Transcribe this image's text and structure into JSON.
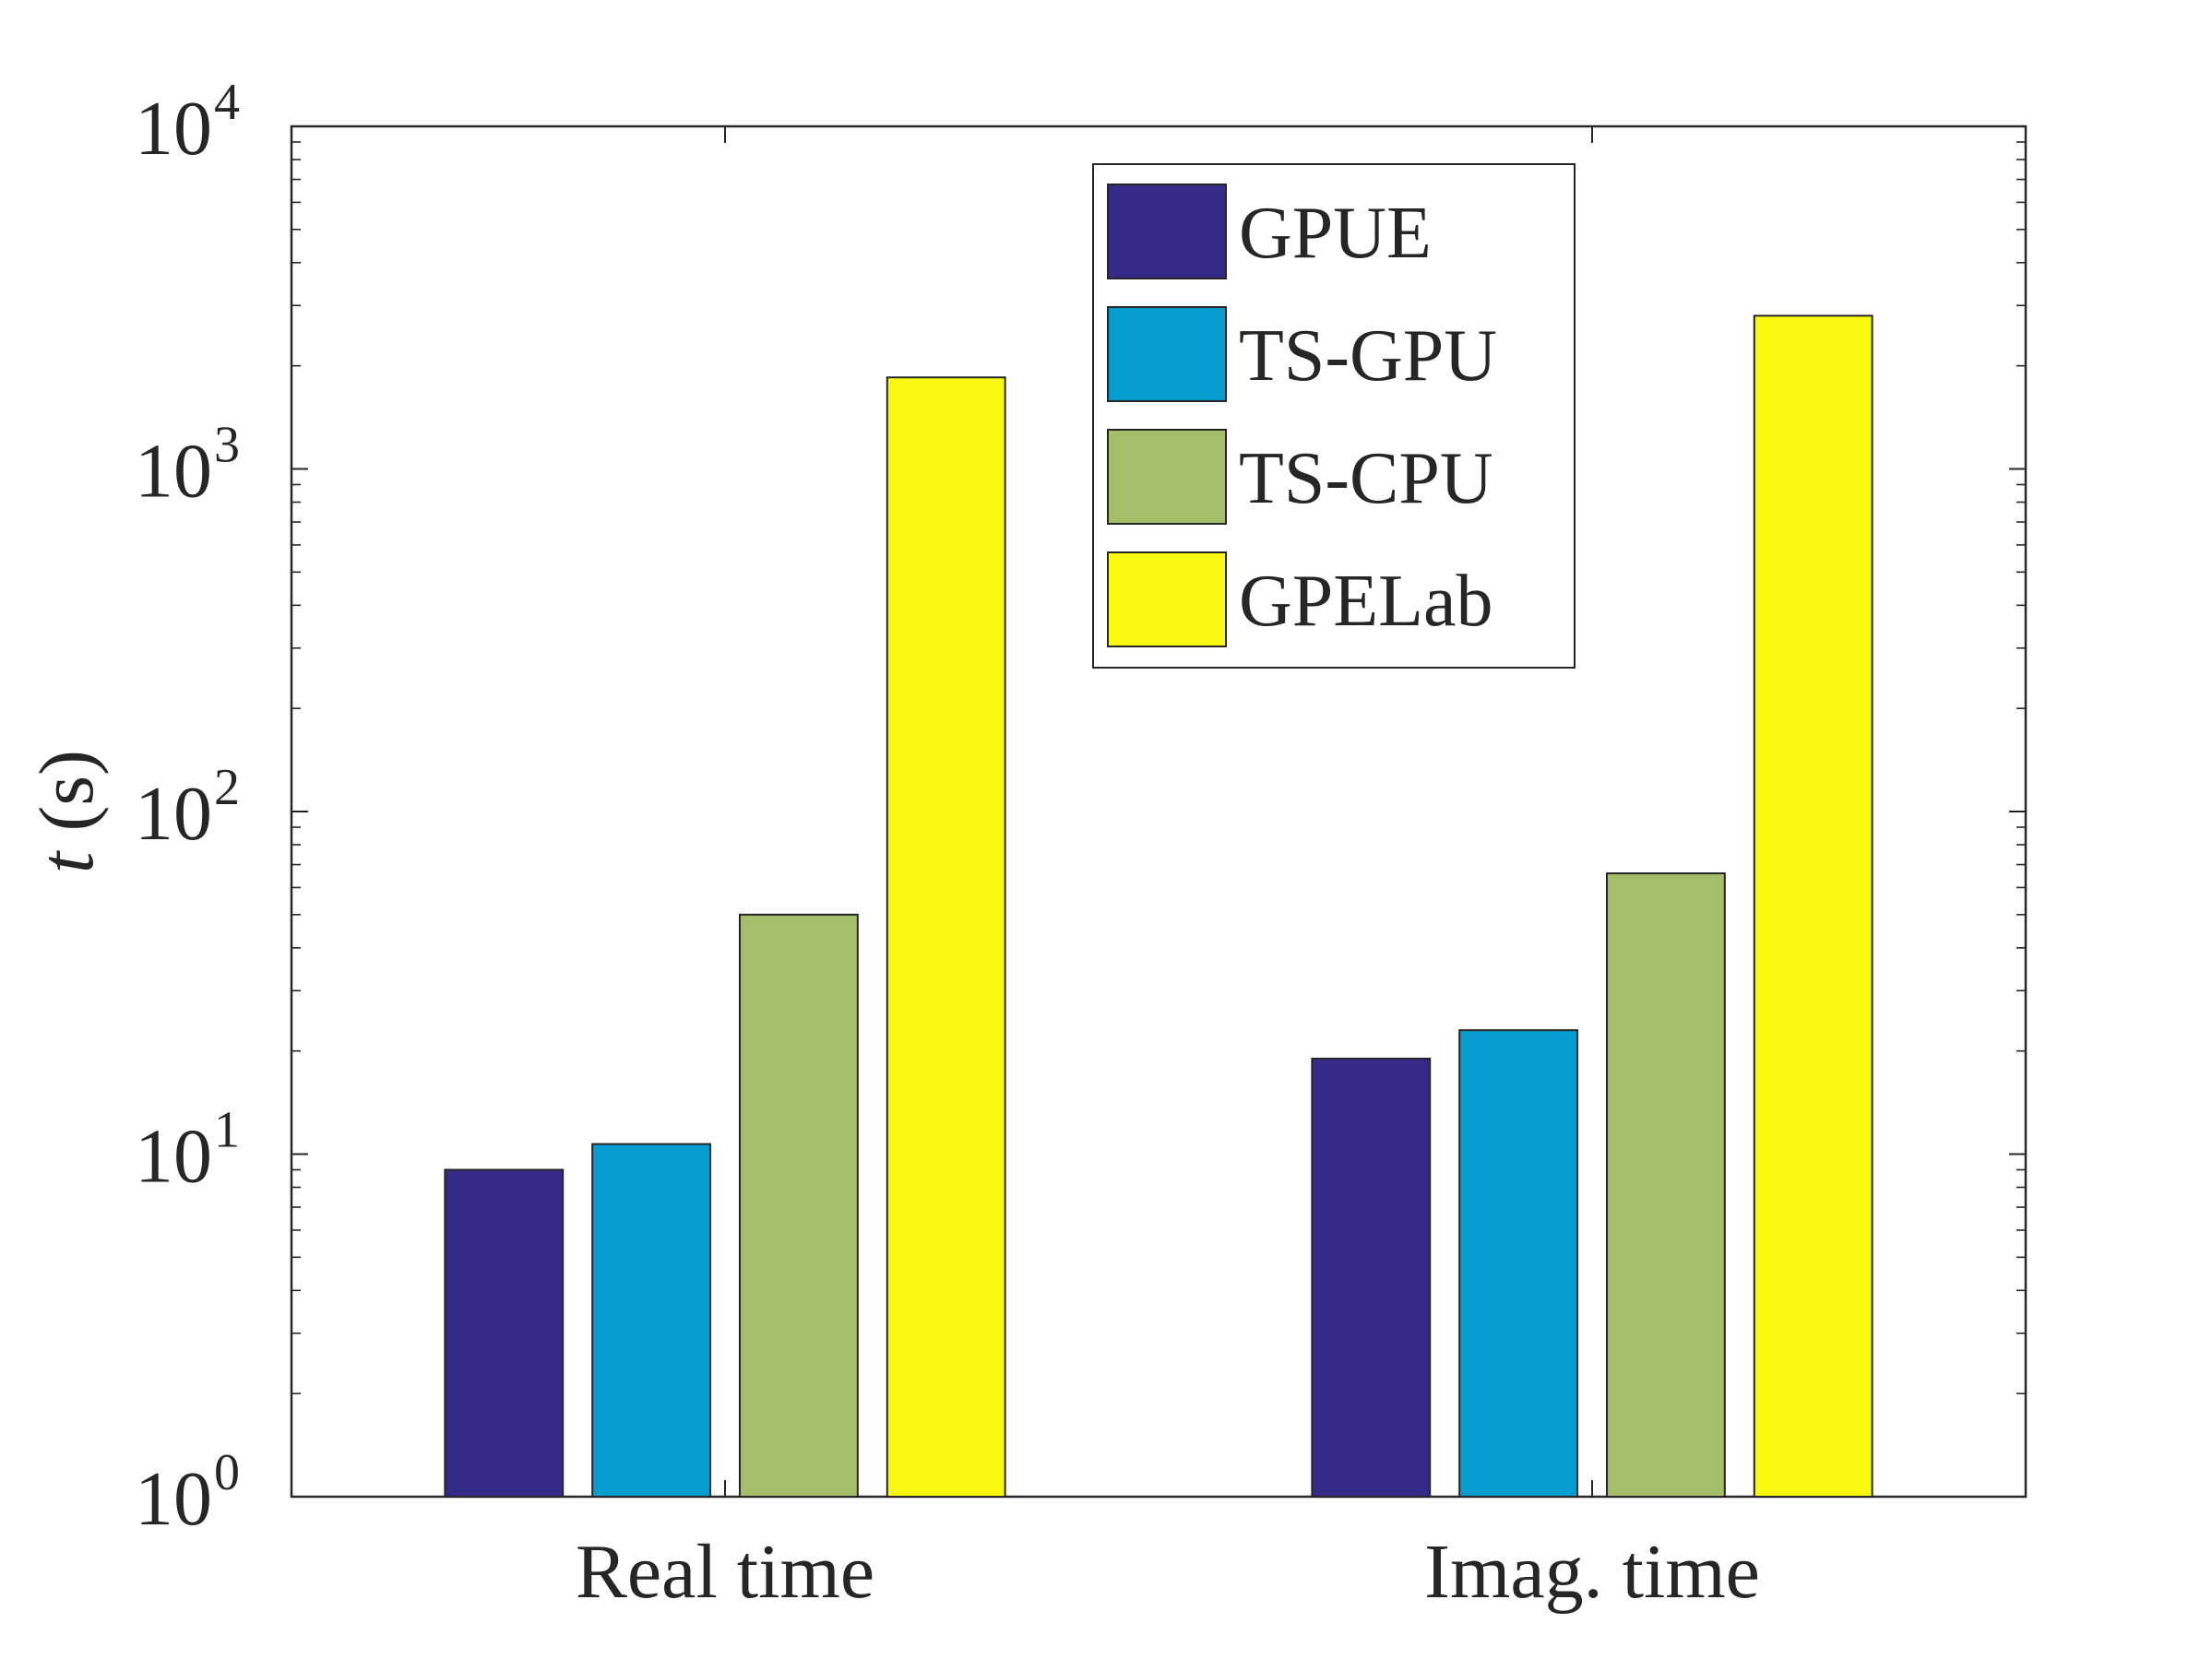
{
  "chart_data": {
    "type": "bar",
    "categories": [
      "Real time",
      "Imag. time"
    ],
    "series": [
      {
        "name": "GPUE",
        "values": [
          9.0,
          19.0
        ]
      },
      {
        "name": "TS-GPU",
        "values": [
          10.7,
          23.0
        ]
      },
      {
        "name": "TS-CPU",
        "values": [
          50.0,
          66.0
        ]
      },
      {
        "name": "GPELab",
        "values": [
          1850,
          2800
        ]
      }
    ],
    "colors": [
      "#352a87",
      "#069cd0",
      "#a5be6a",
      "#f8f90f"
    ],
    "ylabel_symbol": "t",
    "ylabel_unit": "(s)",
    "yscale": "log",
    "ylim": [
      1,
      10000
    ],
    "ytick_base": "10",
    "ytick_exponents": [
      "0",
      "1",
      "2",
      "3",
      "4"
    ],
    "legend_position": "top-center",
    "grid": false
  }
}
